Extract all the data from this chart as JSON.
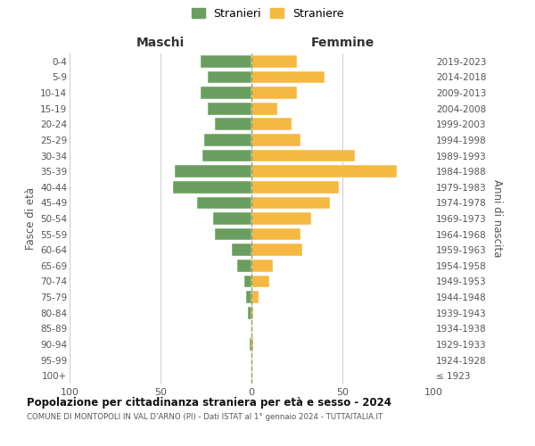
{
  "age_groups": [
    "100+",
    "95-99",
    "90-94",
    "85-89",
    "80-84",
    "75-79",
    "70-74",
    "65-69",
    "60-64",
    "55-59",
    "50-54",
    "45-49",
    "40-44",
    "35-39",
    "30-34",
    "25-29",
    "20-24",
    "15-19",
    "10-14",
    "5-9",
    "0-4"
  ],
  "birth_years": [
    "≤ 1923",
    "1924-1928",
    "1929-1933",
    "1934-1938",
    "1939-1943",
    "1944-1948",
    "1949-1953",
    "1954-1958",
    "1959-1963",
    "1964-1968",
    "1969-1973",
    "1974-1978",
    "1979-1983",
    "1984-1988",
    "1989-1993",
    "1994-1998",
    "1999-2003",
    "2004-2008",
    "2009-2013",
    "2014-2018",
    "2019-2023"
  ],
  "males": [
    0,
    0,
    1,
    0,
    2,
    3,
    4,
    8,
    11,
    20,
    21,
    30,
    43,
    42,
    27,
    26,
    20,
    24,
    28,
    24,
    28
  ],
  "females": [
    0,
    0,
    1,
    0,
    1,
    4,
    10,
    12,
    28,
    27,
    33,
    43,
    48,
    80,
    57,
    27,
    22,
    14,
    25,
    40,
    25
  ],
  "male_color": "#6a9e5f",
  "female_color": "#f5b942",
  "background_color": "#ffffff",
  "grid_color": "#cccccc",
  "title": "Popolazione per cittadinanza straniera per età e sesso - 2024",
  "subtitle": "COMUNE DI MONTOPOLI IN VAL D'ARNO (PI) - Dati ISTAT al 1° gennaio 2024 - TUTTAITALIA.IT",
  "header_left": "Maschi",
  "header_right": "Femmine",
  "ylabel_left": "Fasce di età",
  "ylabel_right": "Anni di nascita",
  "legend_male": "Stranieri",
  "legend_female": "Straniere",
  "xlim": 100,
  "dashed_line_color": "#999966"
}
